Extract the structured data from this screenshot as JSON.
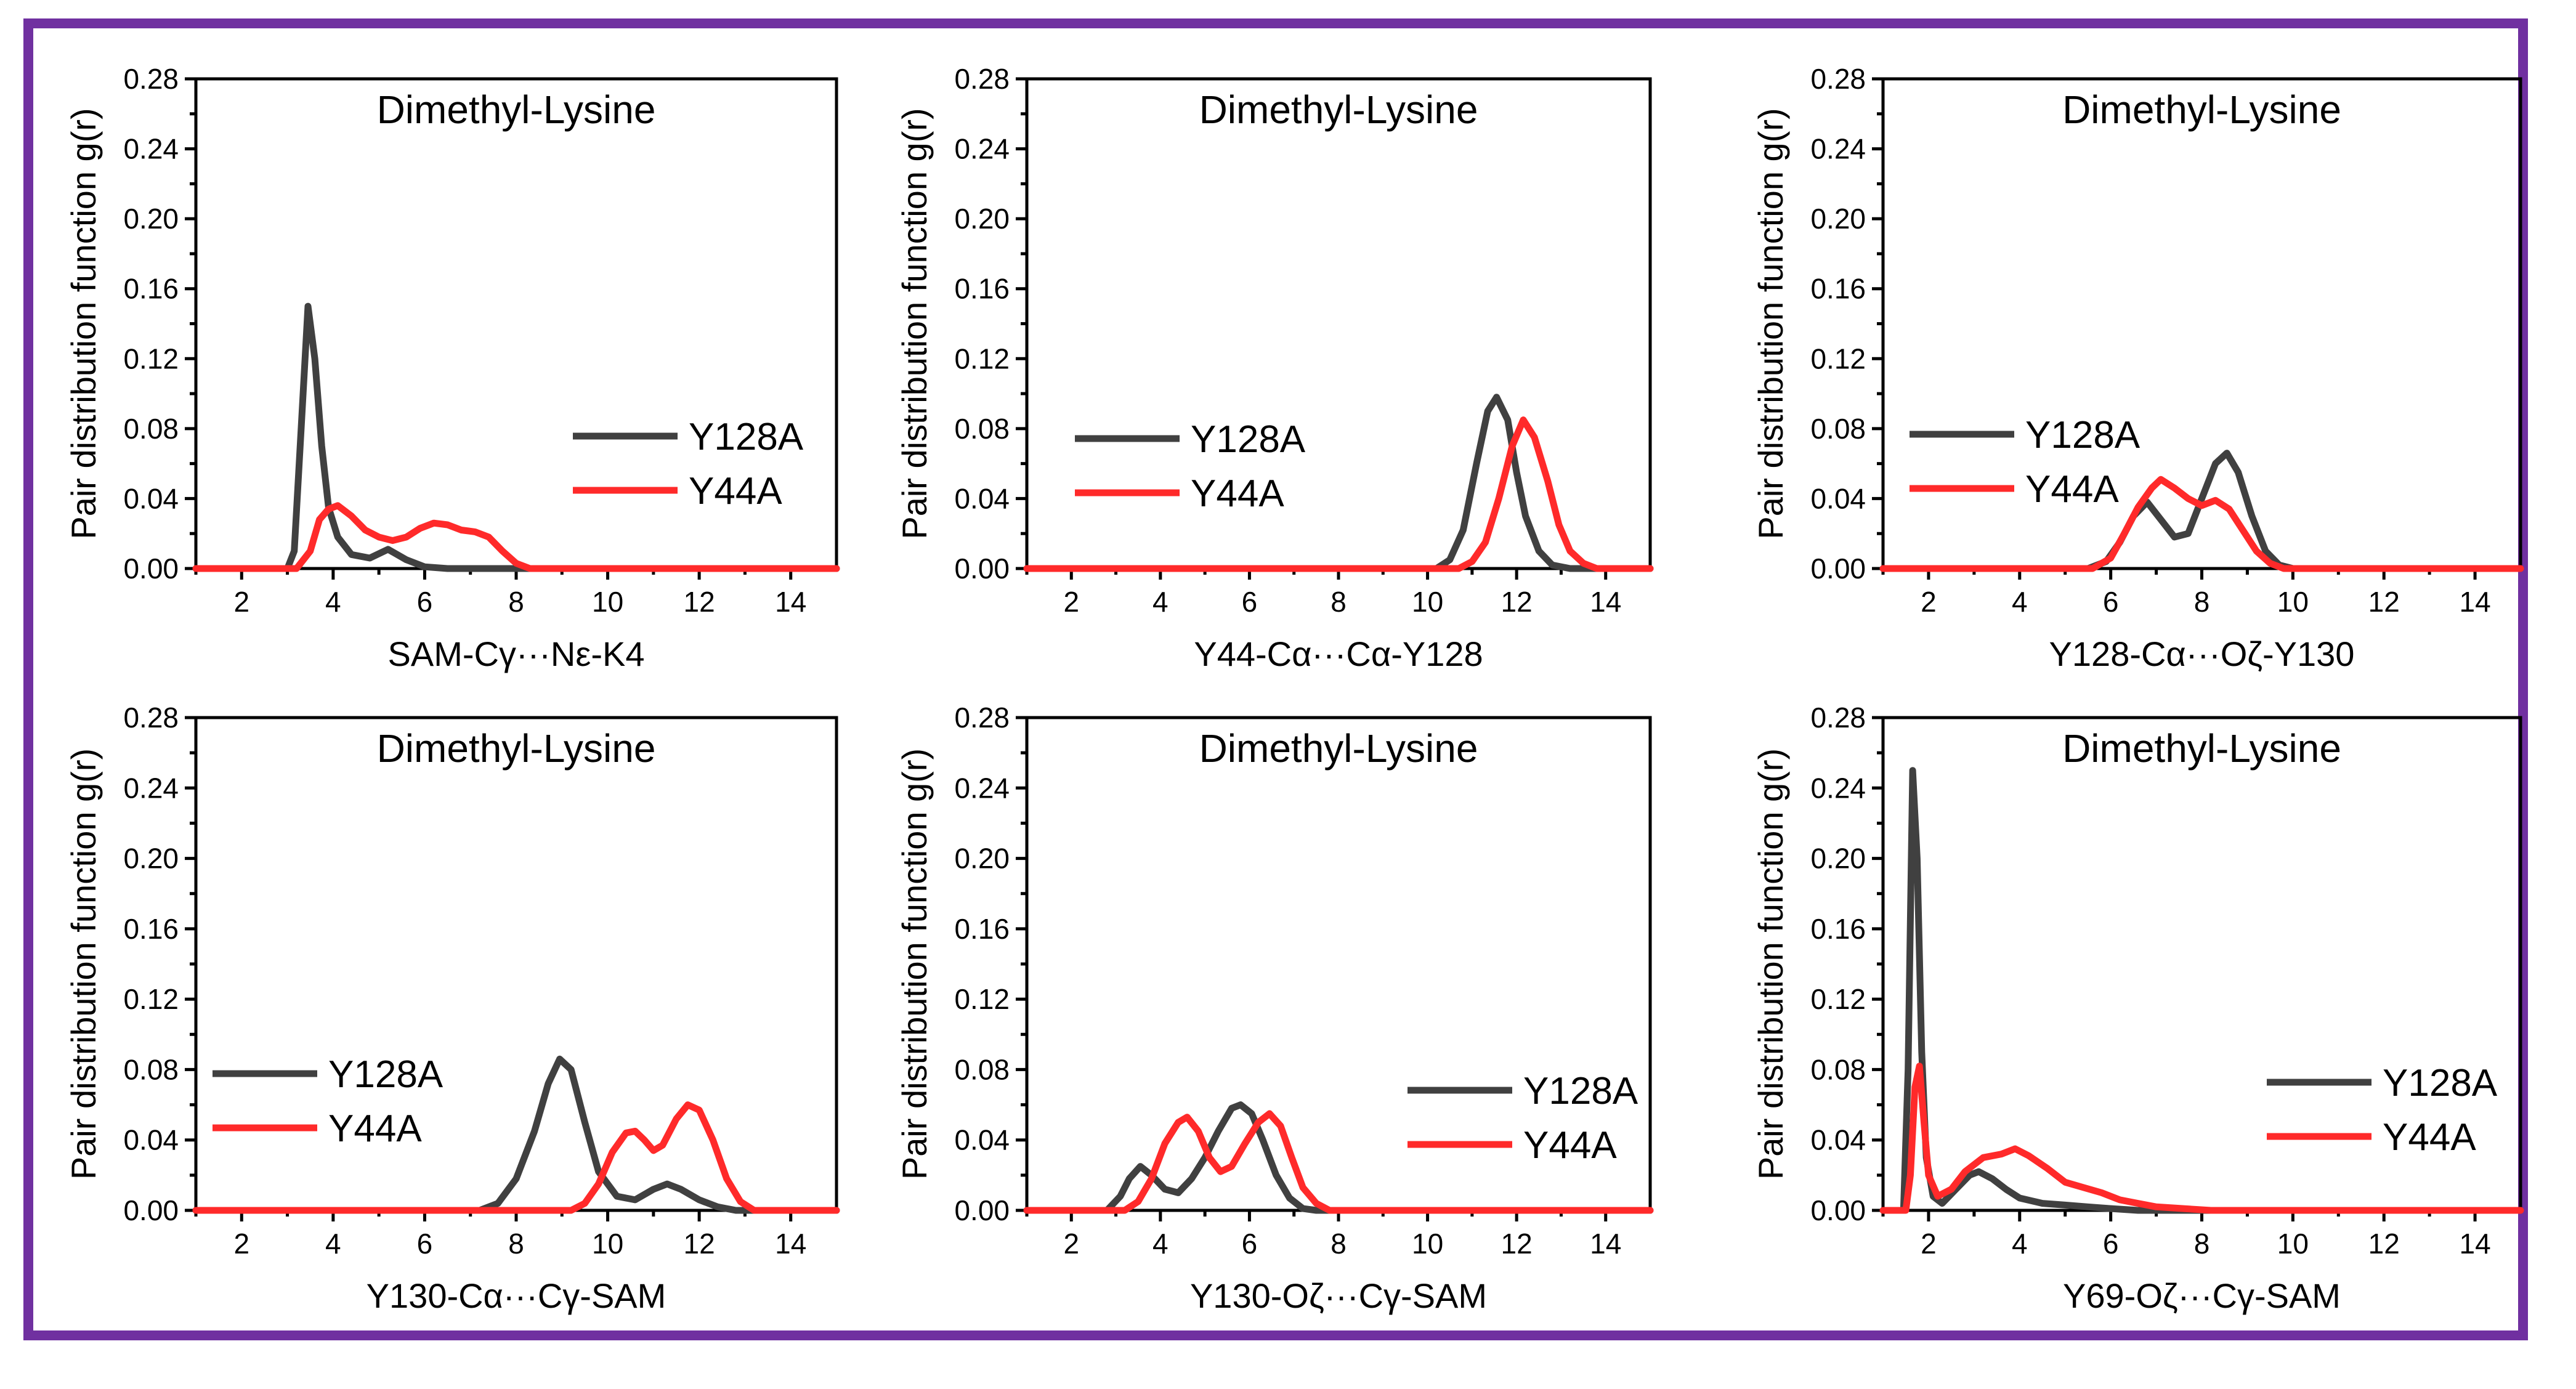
{
  "figure": {
    "frame_color": "#7030a0",
    "layout": "2 rows x 3 columns"
  },
  "chart_data": [
    {
      "type": "line",
      "title": "Dimethyl-Lysine",
      "xlabel": "SAM-Cγ···Nε-K4",
      "ylabel": "Pair distribution function g(r)",
      "xlim": [
        1.0,
        15.0
      ],
      "ylim": [
        0.0,
        0.28
      ],
      "xticks": [
        "2",
        "4",
        "6",
        "8",
        "10",
        "12",
        "14"
      ],
      "yticks": [
        "0.00",
        "0.04",
        "0.08",
        "0.12",
        "0.16",
        "0.20",
        "0.24",
        "0.28"
      ],
      "legend_position": "middle-right",
      "series": [
        {
          "name": "Y128A",
          "color": "#404040",
          "points": [
            [
              1,
              0
            ],
            [
              3.0,
              0
            ],
            [
              3.15,
              0.01
            ],
            [
              3.3,
              0.08
            ],
            [
              3.45,
              0.15
            ],
            [
              3.6,
              0.12
            ],
            [
              3.75,
              0.07
            ],
            [
              3.9,
              0.035
            ],
            [
              4.1,
              0.018
            ],
            [
              4.4,
              0.008
            ],
            [
              4.8,
              0.006
            ],
            [
              5.2,
              0.011
            ],
            [
              5.6,
              0.005
            ],
            [
              6.0,
              0.001
            ],
            [
              6.5,
              0
            ],
            [
              15,
              0
            ]
          ]
        },
        {
          "name": "Y44A",
          "color": "#ff2a2a",
          "points": [
            [
              1,
              0
            ],
            [
              3.2,
              0
            ],
            [
              3.5,
              0.01
            ],
            [
              3.7,
              0.028
            ],
            [
              3.9,
              0.034
            ],
            [
              4.1,
              0.036
            ],
            [
              4.4,
              0.03
            ],
            [
              4.7,
              0.022
            ],
            [
              5.0,
              0.018
            ],
            [
              5.3,
              0.016
            ],
            [
              5.6,
              0.018
            ],
            [
              5.9,
              0.023
            ],
            [
              6.2,
              0.026
            ],
            [
              6.5,
              0.025
            ],
            [
              6.8,
              0.022
            ],
            [
              7.1,
              0.021
            ],
            [
              7.4,
              0.018
            ],
            [
              7.7,
              0.01
            ],
            [
              8.0,
              0.003
            ],
            [
              8.3,
              0
            ],
            [
              15,
              0
            ]
          ]
        }
      ]
    },
    {
      "type": "line",
      "title": "Dimethyl-Lysine",
      "xlabel": "Y44-Cα···Cα-Y128",
      "ylabel": "Pair distribution function g(r)",
      "xlim": [
        1.0,
        15.0
      ],
      "ylim": [
        0.0,
        0.28
      ],
      "xticks": [
        "2",
        "4",
        "6",
        "8",
        "10",
        "12",
        "14"
      ],
      "yticks": [
        "0.00",
        "0.04",
        "0.08",
        "0.12",
        "0.16",
        "0.20",
        "0.24",
        "0.28"
      ],
      "legend_position": "upper-left",
      "series": [
        {
          "name": "Y128A",
          "color": "#404040",
          "points": [
            [
              1,
              0
            ],
            [
              10.2,
              0
            ],
            [
              10.5,
              0.005
            ],
            [
              10.8,
              0.022
            ],
            [
              11.1,
              0.06
            ],
            [
              11.35,
              0.09
            ],
            [
              11.55,
              0.098
            ],
            [
              11.8,
              0.085
            ],
            [
              12.0,
              0.055
            ],
            [
              12.2,
              0.03
            ],
            [
              12.5,
              0.01
            ],
            [
              12.8,
              0.002
            ],
            [
              13.2,
              0
            ],
            [
              15,
              0
            ]
          ]
        },
        {
          "name": "Y44A",
          "color": "#ff2a2a",
          "points": [
            [
              1,
              0
            ],
            [
              10.7,
              0
            ],
            [
              11.0,
              0.004
            ],
            [
              11.3,
              0.015
            ],
            [
              11.6,
              0.04
            ],
            [
              11.9,
              0.07
            ],
            [
              12.15,
              0.085
            ],
            [
              12.4,
              0.075
            ],
            [
              12.7,
              0.05
            ],
            [
              12.95,
              0.025
            ],
            [
              13.2,
              0.01
            ],
            [
              13.5,
              0.003
            ],
            [
              13.8,
              0
            ],
            [
              15,
              0
            ]
          ]
        }
      ]
    },
    {
      "type": "line",
      "title": "Dimethyl-Lysine",
      "xlabel": "Y128-Cα···Oζ-Y130",
      "ylabel": "Pair distribution function g(r)",
      "xlim": [
        1.0,
        15.0
      ],
      "ylim": [
        0.0,
        0.28
      ],
      "xticks": [
        "2",
        "4",
        "6",
        "8",
        "10",
        "12",
        "14"
      ],
      "yticks": [
        "0.00",
        "0.04",
        "0.08",
        "0.12",
        "0.16",
        "0.20",
        "0.24",
        "0.28"
      ],
      "legend_position": "upper-left",
      "series": [
        {
          "name": "Y128A",
          "color": "#404040",
          "points": [
            [
              1,
              0
            ],
            [
              5.5,
              0
            ],
            [
              5.9,
              0.004
            ],
            [
              6.2,
              0.015
            ],
            [
              6.5,
              0.03
            ],
            [
              6.8,
              0.038
            ],
            [
              7.1,
              0.028
            ],
            [
              7.4,
              0.018
            ],
            [
              7.7,
              0.02
            ],
            [
              8.0,
              0.04
            ],
            [
              8.3,
              0.06
            ],
            [
              8.55,
              0.066
            ],
            [
              8.8,
              0.055
            ],
            [
              9.1,
              0.03
            ],
            [
              9.4,
              0.01
            ],
            [
              9.7,
              0.002
            ],
            [
              10.0,
              0
            ],
            [
              15,
              0
            ]
          ]
        },
        {
          "name": "Y44A",
          "color": "#ff2a2a",
          "points": [
            [
              1,
              0
            ],
            [
              5.6,
              0
            ],
            [
              6.0,
              0.006
            ],
            [
              6.3,
              0.02
            ],
            [
              6.6,
              0.035
            ],
            [
              6.9,
              0.046
            ],
            [
              7.1,
              0.051
            ],
            [
              7.4,
              0.046
            ],
            [
              7.7,
              0.04
            ],
            [
              8.0,
              0.036
            ],
            [
              8.3,
              0.039
            ],
            [
              8.6,
              0.034
            ],
            [
              8.9,
              0.022
            ],
            [
              9.2,
              0.01
            ],
            [
              9.5,
              0.003
            ],
            [
              9.8,
              0
            ],
            [
              15,
              0
            ]
          ]
        }
      ]
    },
    {
      "type": "line",
      "title": "Dimethyl-Lysine",
      "xlabel": "Y130-Cα···Cγ-SAM",
      "ylabel": "Pair distribution function g(r)",
      "xlim": [
        1.0,
        15.0
      ],
      "ylim": [
        0.0,
        0.28
      ],
      "xticks": [
        "2",
        "4",
        "6",
        "8",
        "10",
        "12",
        "14"
      ],
      "yticks": [
        "0.00",
        "0.04",
        "0.08",
        "0.12",
        "0.16",
        "0.20",
        "0.24",
        "0.28"
      ],
      "legend_position": "middle-left",
      "series": [
        {
          "name": "Y128A",
          "color": "#404040",
          "points": [
            [
              1,
              0
            ],
            [
              7.2,
              0
            ],
            [
              7.6,
              0.004
            ],
            [
              8.0,
              0.018
            ],
            [
              8.4,
              0.045
            ],
            [
              8.7,
              0.072
            ],
            [
              8.95,
              0.086
            ],
            [
              9.2,
              0.08
            ],
            [
              9.5,
              0.05
            ],
            [
              9.8,
              0.022
            ],
            [
              10.2,
              0.008
            ],
            [
              10.6,
              0.006
            ],
            [
              11.0,
              0.012
            ],
            [
              11.3,
              0.015
            ],
            [
              11.6,
              0.012
            ],
            [
              12.0,
              0.006
            ],
            [
              12.4,
              0.002
            ],
            [
              12.8,
              0
            ],
            [
              15,
              0
            ]
          ]
        },
        {
          "name": "Y44A",
          "color": "#ff2a2a",
          "points": [
            [
              1,
              0
            ],
            [
              9.2,
              0
            ],
            [
              9.5,
              0.004
            ],
            [
              9.8,
              0.015
            ],
            [
              10.1,
              0.033
            ],
            [
              10.4,
              0.044
            ],
            [
              10.6,
              0.045
            ],
            [
              10.8,
              0.04
            ],
            [
              11.0,
              0.034
            ],
            [
              11.2,
              0.037
            ],
            [
              11.5,
              0.052
            ],
            [
              11.75,
              0.06
            ],
            [
              12.0,
              0.057
            ],
            [
              12.3,
              0.04
            ],
            [
              12.6,
              0.018
            ],
            [
              12.9,
              0.005
            ],
            [
              13.2,
              0
            ],
            [
              15,
              0
            ]
          ]
        }
      ]
    },
    {
      "type": "line",
      "title": "Dimethyl-Lysine",
      "xlabel": "Y130-Oζ···Cγ-SAM",
      "ylabel": "Pair distribution function g(r)",
      "xlim": [
        1.0,
        15.0
      ],
      "ylim": [
        0.0,
        0.28
      ],
      "xticks": [
        "2",
        "4",
        "6",
        "8",
        "10",
        "12",
        "14"
      ],
      "yticks": [
        "0.00",
        "0.04",
        "0.08",
        "0.12",
        "0.16",
        "0.20",
        "0.24",
        "0.28"
      ],
      "legend_position": "middle-right",
      "series": [
        {
          "name": "Y128A",
          "color": "#404040",
          "points": [
            [
              1,
              0
            ],
            [
              2.8,
              0
            ],
            [
              3.1,
              0.008
            ],
            [
              3.3,
              0.018
            ],
            [
              3.55,
              0.025
            ],
            [
              3.8,
              0.02
            ],
            [
              4.1,
              0.012
            ],
            [
              4.4,
              0.01
            ],
            [
              4.7,
              0.018
            ],
            [
              5.0,
              0.03
            ],
            [
              5.3,
              0.045
            ],
            [
              5.6,
              0.058
            ],
            [
              5.8,
              0.06
            ],
            [
              6.05,
              0.055
            ],
            [
              6.3,
              0.04
            ],
            [
              6.6,
              0.02
            ],
            [
              6.9,
              0.007
            ],
            [
              7.2,
              0.001
            ],
            [
              7.5,
              0
            ],
            [
              15,
              0
            ]
          ]
        },
        {
          "name": "Y44A",
          "color": "#ff2a2a",
          "points": [
            [
              1,
              0
            ],
            [
              3.2,
              0
            ],
            [
              3.5,
              0.005
            ],
            [
              3.8,
              0.018
            ],
            [
              4.1,
              0.038
            ],
            [
              4.4,
              0.05
            ],
            [
              4.6,
              0.053
            ],
            [
              4.85,
              0.045
            ],
            [
              5.1,
              0.03
            ],
            [
              5.35,
              0.022
            ],
            [
              5.6,
              0.025
            ],
            [
              5.9,
              0.038
            ],
            [
              6.2,
              0.05
            ],
            [
              6.45,
              0.055
            ],
            [
              6.7,
              0.048
            ],
            [
              6.95,
              0.03
            ],
            [
              7.2,
              0.013
            ],
            [
              7.5,
              0.004
            ],
            [
              7.8,
              0
            ],
            [
              15,
              0
            ]
          ]
        }
      ]
    },
    {
      "type": "line",
      "title": "Dimethyl-Lysine",
      "xlabel": "Y69-Oζ···Cγ-SAM",
      "ylabel": "Pair distribution function g(r)",
      "xlim": [
        1.0,
        15.0
      ],
      "ylim": [
        0.0,
        0.28
      ],
      "xticks": [
        "2",
        "4",
        "6",
        "8",
        "10",
        "12",
        "14"
      ],
      "yticks": [
        "0.00",
        "0.04",
        "0.08",
        "0.12",
        "0.16",
        "0.20",
        "0.24",
        "0.28"
      ],
      "legend_position": "middle-right",
      "series": [
        {
          "name": "Y128A",
          "color": "#404040",
          "points": [
            [
              1,
              0
            ],
            [
              1.45,
              0
            ],
            [
              1.55,
              0.08
            ],
            [
              1.65,
              0.25
            ],
            [
              1.75,
              0.2
            ],
            [
              1.85,
              0.09
            ],
            [
              1.95,
              0.03
            ],
            [
              2.1,
              0.008
            ],
            [
              2.3,
              0.004
            ],
            [
              2.6,
              0.012
            ],
            [
              2.9,
              0.02
            ],
            [
              3.1,
              0.022
            ],
            [
              3.4,
              0.018
            ],
            [
              3.7,
              0.012
            ],
            [
              4.0,
              0.007
            ],
            [
              4.5,
              0.004
            ],
            [
              5.0,
              0.003
            ],
            [
              5.5,
              0.002
            ],
            [
              6.0,
              0.001
            ],
            [
              6.6,
              0
            ],
            [
              15,
              0
            ]
          ]
        },
        {
          "name": "Y44A",
          "color": "#ff2a2a",
          "points": [
            [
              1,
              0
            ],
            [
              1.5,
              0
            ],
            [
              1.6,
              0.02
            ],
            [
              1.7,
              0.07
            ],
            [
              1.8,
              0.082
            ],
            [
              1.9,
              0.05
            ],
            [
              2.0,
              0.02
            ],
            [
              2.2,
              0.008
            ],
            [
              2.5,
              0.012
            ],
            [
              2.8,
              0.022
            ],
            [
              3.2,
              0.03
            ],
            [
              3.6,
              0.032
            ],
            [
              3.9,
              0.035
            ],
            [
              4.2,
              0.031
            ],
            [
              4.6,
              0.024
            ],
            [
              5.0,
              0.016
            ],
            [
              5.4,
              0.013
            ],
            [
              5.8,
              0.01
            ],
            [
              6.2,
              0.006
            ],
            [
              6.6,
              0.004
            ],
            [
              7.0,
              0.002
            ],
            [
              7.6,
              0.001
            ],
            [
              8.2,
              0
            ],
            [
              15,
              0
            ]
          ]
        }
      ]
    }
  ]
}
